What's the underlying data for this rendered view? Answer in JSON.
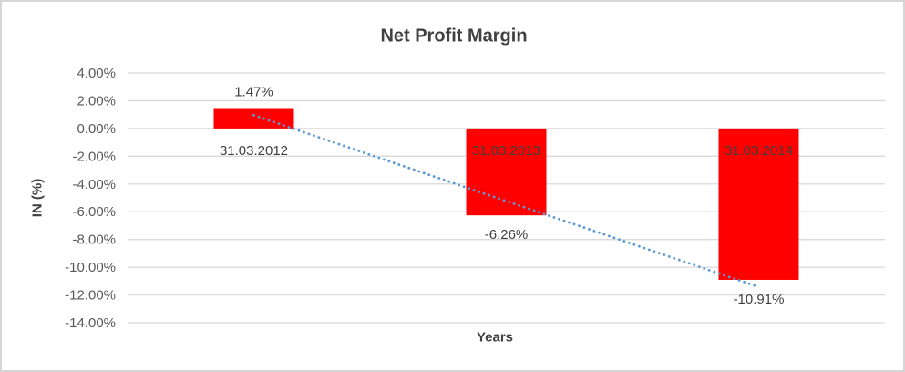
{
  "chart_data": {
    "type": "bar",
    "title": "Net Profit Margin",
    "xlabel": "Years",
    "ylabel": "IN (%)",
    "categories": [
      "31.03.2012",
      "31.03.2013",
      "31.03.2014"
    ],
    "values": [
      1.47,
      -6.26,
      -10.91
    ],
    "data_labels": [
      "1.47%",
      "-6.26%",
      "-10.91%"
    ],
    "y_tick_labels": [
      "4.00%",
      "2.00%",
      "0.00%",
      "-2.00%",
      "-4.00%",
      "-6.00%",
      "-8.00%",
      "-10.00%",
      "-12.00%",
      "-14.00%"
    ],
    "y_tick_values": [
      4,
      2,
      0,
      -2,
      -4,
      -6,
      -8,
      -10,
      -12,
      -14
    ],
    "ylim": [
      -14,
      4
    ],
    "grid": true,
    "legend": "none",
    "trendline": {
      "type": "linear",
      "style": "dotted",
      "color": "#5B9BD5"
    },
    "colors": {
      "bar": "#FF0000",
      "gridline": "#D9D9D9",
      "title_text": "#404040",
      "axis_title_text": "#404040",
      "tick_text": "#595959",
      "data_label_text": "#404040",
      "category_label_text": "#404040",
      "border": "#D6D6D6",
      "background": "#FFFFFF"
    }
  }
}
